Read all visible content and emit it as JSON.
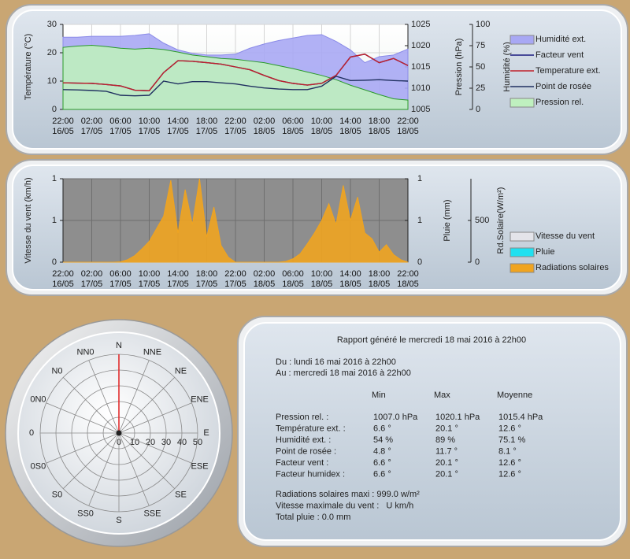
{
  "chart_data": [
    {
      "type": "line",
      "categories": [
        "22:00\n16/05",
        null,
        "02:00\n17/05",
        null,
        "06:00\n17/05",
        null,
        "10:00\n17/05",
        null,
        "14:00\n17/05",
        null,
        "18:00\n17/05",
        null,
        "22:00\n17/05",
        null,
        "02:00\n18/05",
        null,
        "06:00\n18/05",
        null,
        "10:00\n18/05",
        null,
        "14:00\n18/05",
        null,
        "18:00\n18/05",
        null,
        "22:00\n18/05"
      ],
      "ylabel": "Température (°C)",
      "ylim": [
        0,
        30
      ],
      "yticks": [
        0,
        10,
        20,
        30
      ],
      "y2label": "Pression (hPa)",
      "y2lim": [
        1005,
        1025
      ],
      "y2ticks": [
        1005,
        1010,
        1015,
        1020,
        1025
      ],
      "y3label": "Humidité (%)",
      "y3lim": [
        0,
        100
      ],
      "y3ticks": [
        0,
        25,
        50,
        75,
        100
      ],
      "grid": true,
      "legend": "right",
      "series": [
        {
          "name": "Humidité ext.",
          "color": "#8a8ae8",
          "fill": "#a8a8f4",
          "area": true,
          "axis": "y3",
          "values": [
            85,
            85,
            86,
            86,
            86,
            87,
            89,
            78,
            70,
            66,
            64,
            64,
            65,
            72,
            77,
            81,
            84,
            87,
            88,
            80,
            70,
            55,
            62,
            64,
            71
          ]
        },
        {
          "name": "Facteur vent",
          "color": "#1a1a80",
          "values": [
            9.4,
            9.3,
            9.2,
            8.8,
            8.3,
            6.8,
            6.6,
            13.0,
            17.2,
            17.0,
            16.5,
            16.0,
            15.0,
            14.0,
            12.0,
            10.2,
            9.2,
            8.6,
            9.2,
            12.0,
            18.5,
            19.5,
            16.5,
            18.0,
            15.5
          ]
        },
        {
          "name": "Temperature ext.",
          "color": "#c0202a",
          "values": [
            9.4,
            9.3,
            9.2,
            8.8,
            8.3,
            6.8,
            6.6,
            13.0,
            17.2,
            17.0,
            16.5,
            16.0,
            15.0,
            14.0,
            12.0,
            10.2,
            9.2,
            8.6,
            9.2,
            12.0,
            18.5,
            19.5,
            16.5,
            18.0,
            15.5
          ]
        },
        {
          "name": "Point de rosée",
          "color": "#203060",
          "values": [
            7.0,
            6.9,
            6.7,
            6.4,
            5.0,
            4.8,
            5.0,
            10.0,
            9.0,
            9.8,
            9.8,
            9.4,
            9.0,
            8.2,
            7.6,
            7.2,
            7.0,
            7.0,
            8.2,
            11.7,
            10.2,
            10.3,
            10.5,
            10.2,
            10.0
          ]
        },
        {
          "name": "Pression rel.",
          "color": "#2a9a2a",
          "fill": "#bff0bf",
          "area": true,
          "axis": "y2",
          "values": [
            1019.6,
            1019.9,
            1020.1,
            1019.8,
            1019.4,
            1019.2,
            1019.4,
            1019.1,
            1018.5,
            1017.8,
            1017.4,
            1017.0,
            1016.8,
            1016.4,
            1016.0,
            1015.3,
            1014.6,
            1013.8,
            1013.0,
            1012.0,
            1010.7,
            1009.6,
            1008.5,
            1007.5,
            1007.2
          ]
        }
      ]
    },
    {
      "type": "area",
      "categories": [
        "22:00\n16/05",
        null,
        null,
        null,
        "02:00\n17/05",
        null,
        null,
        null,
        "06:00\n17/05",
        null,
        null,
        null,
        "10:00\n17/05",
        null,
        null,
        null,
        "14:00\n17/05",
        null,
        null,
        null,
        "18:00\n17/05",
        null,
        null,
        null,
        "22:00\n17/05",
        null,
        null,
        null,
        "02:00\n18/05",
        null,
        null,
        null,
        "06:00\n18/05",
        null,
        null,
        null,
        "10:00\n18/05",
        null,
        null,
        null,
        "14:00\n18/05",
        null,
        null,
        null,
        "18:00\n18/05",
        null,
        null,
        null,
        "22:00\n18/05"
      ],
      "ylabel": "Vitesse du vent (km/h)",
      "ylim": [
        0,
        1
      ],
      "yticks": [
        0,
        {
          "value": 0.5,
          "label": "1"
        },
        1
      ],
      "y2label": "Pluie (mm)",
      "y2lim": [
        0,
        1
      ],
      "y2ticks": [
        0,
        {
          "value": 0.5,
          "label": "1"
        },
        1
      ],
      "y3label": "Rd.Solaire(W/m²)",
      "y3lim": [
        0,
        1000
      ],
      "y3ticks": [
        0,
        500
      ],
      "grid": true,
      "legend": "right",
      "series": [
        {
          "name": "Vitesse du vent",
          "color": "#e4e4ea",
          "values": [
            0,
            0,
            0,
            0,
            0,
            0,
            0,
            0,
            0,
            0,
            0,
            0,
            0,
            0,
            0,
            0,
            0,
            0,
            0,
            0,
            0,
            0,
            0,
            0,
            0,
            0,
            0,
            0,
            0,
            0,
            0,
            0,
            0,
            0,
            0,
            0,
            0,
            0,
            0,
            0,
            0,
            0,
            0,
            0,
            0,
            0,
            0,
            0,
            0
          ]
        },
        {
          "name": "Pluie",
          "color": "#20e0f0",
          "axis": "y2",
          "values": [
            0,
            0,
            0,
            0,
            0,
            0,
            0,
            0,
            0,
            0,
            0,
            0,
            0,
            0,
            0,
            0,
            0,
            0,
            0,
            0,
            0,
            0,
            0,
            0,
            0,
            0,
            0,
            0,
            0,
            0,
            0,
            0,
            0,
            0,
            0,
            0,
            0,
            0,
            0,
            0,
            0,
            0,
            0,
            0,
            0,
            0,
            0,
            0,
            0
          ]
        },
        {
          "name": "Radiations solaires",
          "color": "#f0a420",
          "axis": "y3",
          "values": [
            0,
            0,
            0,
            0,
            0,
            0,
            0,
            0,
            5,
            30,
            80,
            160,
            250,
            400,
            550,
            980,
            350,
            870,
            450,
            999,
            300,
            660,
            200,
            60,
            0,
            0,
            0,
            0,
            0,
            0,
            0,
            10,
            40,
            100,
            220,
            350,
            500,
            700,
            450,
            920,
            500,
            780,
            350,
            280,
            120,
            210,
            90,
            30,
            0
          ]
        }
      ]
    },
    {
      "type": "polar",
      "directions": [
        "N",
        "NNE",
        "NE",
        "ENE",
        "E",
        "ESE",
        "SE",
        "SSE",
        "S",
        "SS0",
        "S0",
        "0S0",
        "0",
        "0N0",
        "N0",
        "NN0"
      ],
      "rlim": [
        0,
        50
      ],
      "rticks": [
        0,
        10,
        20,
        30,
        40,
        50
      ]
    }
  ],
  "report": {
    "title": "Rapport généré le mercredi 18 mai 2016 à 22h00",
    "from": "Du : lundi 16 mai 2016 à 22h00",
    "to": "Au : mercredi 18 mai 2016 à 22h00",
    "columns": [
      "Min",
      "Max",
      "Moyenne"
    ],
    "rows": [
      [
        "Pression rel. :",
        "1007.0 hPa",
        "1020.1 hPa",
        "1015.4 hPa"
      ],
      [
        "Température ext. :",
        "6.6 °",
        "20.1 °",
        "12.6 °"
      ],
      [
        "Humidité ext. :",
        "54 %",
        "89 %",
        "75.1 %"
      ],
      [
        "Point de rosée :",
        "4.8 °",
        "11.7 °",
        "8.1 °"
      ],
      [
        "Facteur vent :",
        "6.6 °",
        "20.1 °",
        "12.6 °"
      ],
      [
        "Facteur humidex :",
        "6.6 °",
        "20.1 °",
        "12.6 °"
      ]
    ],
    "footer": [
      "Radiations solaires maxi : 999.0 w/m²",
      "Vitesse maximale du vent :   U km/h",
      "Total pluie : 0.0 mm"
    ]
  }
}
